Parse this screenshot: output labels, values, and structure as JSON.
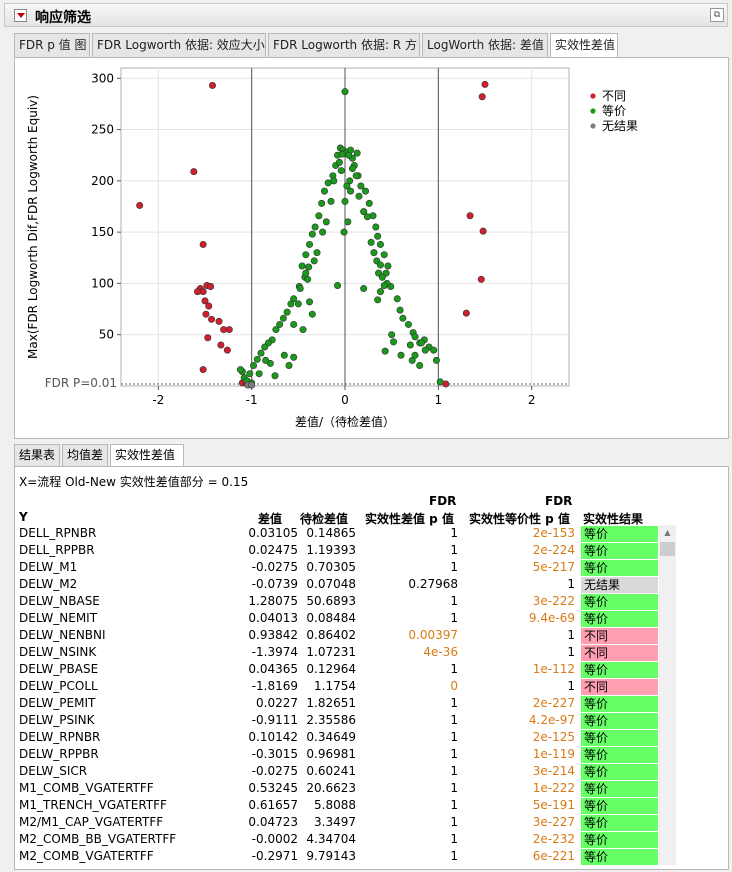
{
  "outline": {
    "title": "响应筛选"
  },
  "tabs": [
    "FDR p 值 图",
    "FDR Logworth 依据: 效应大小",
    "FDR Logworth 依据: R 方",
    "LogWorth 依据: 差值",
    "实效性差值"
  ],
  "active_tab": 4,
  "chart_data": {
    "type": "scatter",
    "xlabel": "差值/（待检差值）",
    "ylabel": "Max(FDR Logworth Dif,FDR Logworth Equiv)",
    "xlim": [
      -2.4,
      2.4
    ],
    "ylim": [
      0,
      310
    ],
    "xticks": [
      -2,
      -1,
      0,
      1,
      2
    ],
    "yticks": [
      50,
      100,
      150,
      200,
      250,
      300
    ],
    "vlines": [
      -1,
      0,
      1
    ],
    "reference_line": {
      "label": "FDR P=0.01",
      "y": 2
    },
    "grid": true,
    "legend_position": "top-right",
    "series": [
      {
        "name": "不同",
        "color": "#d0202e",
        "points": [
          [
            -2.2,
            176
          ],
          [
            -1.62,
            209
          ],
          [
            -1.42,
            293
          ],
          [
            -1.52,
            138
          ],
          [
            -1.55,
            95
          ],
          [
            -1.52,
            92
          ],
          [
            -1.48,
            98
          ],
          [
            -1.44,
            97
          ],
          [
            -1.58,
            92
          ],
          [
            -1.5,
            83
          ],
          [
            -1.46,
            78
          ],
          [
            -1.49,
            70
          ],
          [
            -1.43,
            65
          ],
          [
            -1.35,
            63
          ],
          [
            -1.3,
            55
          ],
          [
            -1.24,
            55
          ],
          [
            -1.47,
            47
          ],
          [
            -1.33,
            40
          ],
          [
            -1.26,
            35
          ],
          [
            -1.52,
            16
          ],
          [
            -1.1,
            3
          ],
          [
            -1.05,
            2
          ],
          [
            1.08,
            2
          ],
          [
            1.3,
            71
          ],
          [
            1.34,
            166
          ],
          [
            1.48,
            151
          ],
          [
            1.46,
            104
          ],
          [
            1.47,
            282
          ],
          [
            1.5,
            294
          ]
        ]
      },
      {
        "name": "等价",
        "color": "#1a9a1a",
        "points": [
          [
            0,
            287
          ],
          [
            -0.05,
            232
          ],
          [
            -0.02,
            230
          ],
          [
            0.02,
            228
          ],
          [
            0.06,
            230
          ],
          [
            -0.08,
            225
          ],
          [
            0.08,
            222
          ],
          [
            -0.1,
            215
          ],
          [
            0.1,
            215
          ],
          [
            0.13,
            227
          ],
          [
            -0.13,
            205
          ],
          [
            0.14,
            205
          ],
          [
            -0.18,
            198
          ],
          [
            0.17,
            195
          ],
          [
            -0.22,
            190
          ],
          [
            0.22,
            190
          ],
          [
            -0.25,
            178
          ],
          [
            0.26,
            178
          ],
          [
            -0.28,
            166
          ],
          [
            0.3,
            166
          ],
          [
            -0.32,
            155
          ],
          [
            0.33,
            155
          ],
          [
            -0.35,
            148
          ],
          [
            0.35,
            146
          ],
          [
            -0.38,
            138
          ],
          [
            0.38,
            138
          ],
          [
            -0.42,
            128
          ],
          [
            0.42,
            128
          ],
          [
            -0.46,
            117
          ],
          [
            0.46,
            117
          ],
          [
            -0.43,
            106
          ],
          [
            -0.49,
            97
          ],
          [
            0.49,
            97
          ],
          [
            -0.55,
            85
          ],
          [
            -0.58,
            80
          ],
          [
            0.56,
            85
          ],
          [
            -0.62,
            72
          ],
          [
            0.59,
            74
          ],
          [
            0.36,
            110
          ],
          [
            -0.66,
            66
          ],
          [
            -0.7,
            60
          ],
          [
            0.62,
            66
          ],
          [
            -0.74,
            55
          ],
          [
            0.68,
            60
          ],
          [
            -0.78,
            45
          ],
          [
            0.73,
            52
          ],
          [
            -0.82,
            42
          ],
          [
            0.75,
            48
          ],
          [
            -0.86,
            38
          ],
          [
            0.8,
            42
          ],
          [
            -0.9,
            32
          ],
          [
            -0.94,
            26
          ],
          [
            -0.98,
            20
          ],
          [
            -1.02,
            12
          ],
          [
            -1.08,
            8
          ],
          [
            -0.65,
            30
          ],
          [
            -0.8,
            22
          ],
          [
            -0.6,
            20
          ],
          [
            -1.1,
            14
          ],
          [
            -1.12,
            16
          ],
          [
            -1.05,
            5
          ],
          [
            -1.0,
            3
          ],
          [
            -0.92,
            12
          ],
          [
            0.6,
            30
          ],
          [
            0.75,
            30
          ],
          [
            0.72,
            25
          ],
          [
            0.85,
            45
          ],
          [
            0.9,
            38
          ],
          [
            0.95,
            35
          ],
          [
            0.98,
            25
          ],
          [
            0.82,
            42
          ],
          [
            0.86,
            35
          ],
          [
            -0.5,
            80
          ],
          [
            -0.75,
            10
          ],
          [
            0.05,
            200
          ],
          [
            -0.04,
            210
          ],
          [
            0.03,
            160
          ],
          [
            0.0,
            180
          ],
          [
            0.02,
            195
          ],
          [
            0.06,
            190
          ],
          [
            -0.01,
            150
          ],
          [
            -0.08,
            98
          ],
          [
            0.2,
            95
          ],
          [
            0.44,
            110
          ],
          [
            -0.42,
            110
          ],
          [
            -0.48,
            95
          ],
          [
            0.45,
            100
          ],
          [
            -0.55,
            60
          ],
          [
            0.5,
            50
          ],
          [
            0.52,
            43
          ],
          [
            0.43,
            34
          ],
          [
            -0.35,
            70
          ],
          [
            -0.38,
            82
          ],
          [
            0.35,
            84
          ],
          [
            0.38,
            92
          ],
          [
            -0.55,
            28
          ],
          [
            0.8,
            20
          ],
          [
            1.02,
            4
          ],
          [
            0.7,
            40
          ],
          [
            -0.45,
            55
          ],
          [
            -0.85,
            25
          ],
          [
            0.2,
            170
          ],
          [
            0.15,
            185
          ],
          [
            -0.15,
            180
          ],
          [
            -0.2,
            160
          ],
          [
            -0.24,
            150
          ],
          [
            0.24,
            165
          ],
          [
            0.28,
            140
          ],
          [
            -0.3,
            130
          ],
          [
            -0.33,
            122
          ],
          [
            0.31,
            130
          ],
          [
            0.34,
            122
          ],
          [
            0.38,
            118
          ],
          [
            -0.39,
            116
          ],
          [
            0.4,
            106
          ],
          [
            -0.4,
            104
          ],
          [
            0.42,
            98
          ],
          [
            0.12,
            205
          ],
          [
            -0.12,
            200
          ],
          [
            0.08,
            212
          ],
          [
            -0.06,
            218
          ],
          [
            0.04,
            225
          ],
          [
            -0.03,
            226
          ]
        ]
      },
      {
        "name": "无结果",
        "color": "#7f7f7f",
        "points": [
          [
            -1.04,
            1
          ],
          [
            -1.0,
            1
          ]
        ]
      }
    ]
  },
  "bottom_tabs": [
    "结果表",
    "均值差",
    "实效性差值"
  ],
  "bottom_active_tab": 2,
  "table": {
    "caption": "X=流程  Old-New  实效性差值部分 = 0.15",
    "headers": {
      "y": "Y",
      "diff": "差值",
      "test_diff": "待检差值",
      "fdr_diff_top": "FDR",
      "fdr_diff": "实效性差值 p 值",
      "fdr_equiv_top": "FDR",
      "fdr_equiv": "实效性等价性 p 值",
      "result": "实效性结果"
    },
    "rows": [
      {
        "y": "DELL_RPNBR",
        "diff": "0.03105",
        "test": "0.14865",
        "p1": "1",
        "p2": "2e-153",
        "res": "等价"
      },
      {
        "y": "DELL_RPPBR",
        "diff": "0.02475",
        "test": "1.19393",
        "p1": "1",
        "p2": "2e-224",
        "res": "等价"
      },
      {
        "y": "DELW_M1",
        "diff": "-0.0275",
        "test": "0.70305",
        "p1": "1",
        "p2": "5e-217",
        "res": "等价"
      },
      {
        "y": "DELW_M2",
        "diff": "-0.0739",
        "test": "0.07048",
        "p1": "0.27968",
        "p2": "1",
        "res": "无结果"
      },
      {
        "y": "DELW_NBASE",
        "diff": "1.28075",
        "test": "50.6893",
        "p1": "1",
        "p2": "3e-222",
        "res": "等价"
      },
      {
        "y": "DELW_NEMIT",
        "diff": "0.04013",
        "test": "0.08484",
        "p1": "1",
        "p2": "9.4e-69",
        "res": "等价"
      },
      {
        "y": "DELW_NENBNI",
        "diff": "0.93842",
        "test": "0.86402",
        "p1": "0.00397",
        "p2": "1",
        "res": "不同"
      },
      {
        "y": "DELW_NSINK",
        "diff": "-1.3974",
        "test": "1.07231",
        "p1": "4e-36",
        "p2": "1",
        "res": "不同"
      },
      {
        "y": "DELW_PBASE",
        "diff": "0.04365",
        "test": "0.12964",
        "p1": "1",
        "p2": "1e-112",
        "res": "等价"
      },
      {
        "y": "DELW_PCOLL",
        "diff": "-1.8169",
        "test": "1.1754",
        "p1": "0",
        "p2": "1",
        "res": "不同"
      },
      {
        "y": "DELW_PEMIT",
        "diff": "0.0227",
        "test": "1.82651",
        "p1": "1",
        "p2": "2e-227",
        "res": "等价"
      },
      {
        "y": "DELW_PSINK",
        "diff": "-0.9111",
        "test": "2.35586",
        "p1": "1",
        "p2": "4.2e-97",
        "res": "等价"
      },
      {
        "y": "DELW_RPNBR",
        "diff": "0.10142",
        "test": "0.34649",
        "p1": "1",
        "p2": "2e-125",
        "res": "等价"
      },
      {
        "y": "DELW_RPPBR",
        "diff": "-0.3015",
        "test": "0.96981",
        "p1": "1",
        "p2": "1e-119",
        "res": "等价"
      },
      {
        "y": "DELW_SICR",
        "diff": "-0.0275",
        "test": "0.60241",
        "p1": "1",
        "p2": "3e-214",
        "res": "等价"
      },
      {
        "y": "M1_COMB_VGATERTFF",
        "diff": "0.53245",
        "test": "20.6623",
        "p1": "1",
        "p2": "1e-222",
        "res": "等价"
      },
      {
        "y": "M1_TRENCH_VGATERTFF",
        "diff": "0.61657",
        "test": "5.8088",
        "p1": "1",
        "p2": "5e-191",
        "res": "等价"
      },
      {
        "y": "M2/M1_CAP_VGATERTFF",
        "diff": "0.04723",
        "test": "3.3497",
        "p1": "1",
        "p2": "3e-227",
        "res": "等价"
      },
      {
        "y": "M2_COMB_BB_VGATERTFF",
        "diff": "-0.0002",
        "test": "4.34704",
        "p1": "1",
        "p2": "2e-232",
        "res": "等价"
      },
      {
        "y": "M2_COMB_VGATERTFF",
        "diff": "-0.2971",
        "test": "9.79143",
        "p1": "1",
        "p2": "6e-221",
        "res": "等价"
      }
    ]
  },
  "colors": {
    "different": "#d0202e",
    "equivalent": "#1a9a1a",
    "no_result": "#7f7f7f",
    "cell_equivalent": "#66ff66",
    "cell_different": "#ff9eb0",
    "cell_no_result": "#d9d9d9",
    "orange_value": "#d87a16"
  }
}
